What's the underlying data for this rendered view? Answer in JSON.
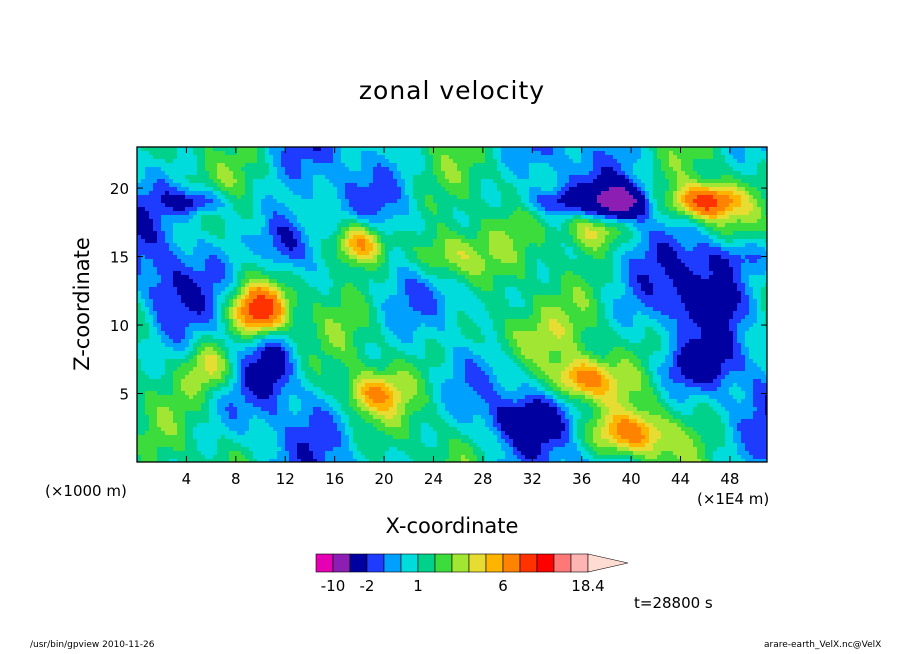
{
  "chart_data": {
    "type": "heatmap",
    "title": "zonal velocity",
    "xlabel": "X-coordinate",
    "ylabel": "Z-coordinate",
    "x_unit_left": "(×1000 m)",
    "x_unit_right": "(×1E4 m)",
    "xlim": [
      0,
      51
    ],
    "ylim": [
      0,
      23
    ],
    "x_ticks": [
      4,
      8,
      12,
      16,
      20,
      24,
      28,
      32,
      36,
      40,
      44,
      48
    ],
    "y_ticks": [
      5,
      10,
      15,
      20
    ],
    "colorbar": {
      "levels": [
        -14,
        -10,
        -6,
        -2,
        -1,
        0,
        1,
        2,
        3,
        4,
        5,
        6,
        8,
        10,
        12,
        14,
        18.4
      ],
      "colors": [
        "#e600b4",
        "#8c1eb4",
        "#0000a0",
        "#1e3cff",
        "#00a0ff",
        "#00dcdc",
        "#00d28c",
        "#3cdc3c",
        "#a0e632",
        "#e6dc32",
        "#ffb400",
        "#ff8200",
        "#ff3200",
        "#ff0000",
        "#ff7878",
        "#ffb4b4",
        "#ffdcd2"
      ],
      "tick_labels": [
        "-10",
        "-2",
        "1",
        "6",
        "18.4"
      ]
    },
    "time_label": "t=28800 s",
    "footer_left": "/usr/bin/gpview   2010-11-26",
    "footer_right": "arare-earth_VelX.nc@VelX"
  }
}
